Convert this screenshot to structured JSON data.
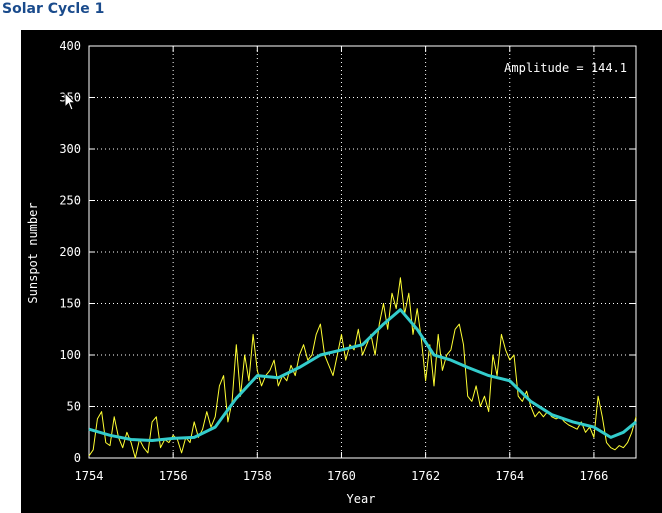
{
  "page": {
    "title": "Solar Cycle 1"
  },
  "chart_data": {
    "type": "line",
    "title": "",
    "xlabel": "Year",
    "ylabel": "Sunspot number",
    "xlim": [
      1754,
      1767
    ],
    "ylim": [
      0,
      400
    ],
    "xticks": [
      1754,
      1756,
      1758,
      1760,
      1762,
      1764,
      1766
    ],
    "yticks": [
      0,
      50,
      100,
      150,
      200,
      250,
      300,
      350,
      400
    ],
    "grid": true,
    "annotation": "Amplitude = 144.1",
    "colors": {
      "background": "#000000",
      "monthly": "#ffff33",
      "smoothed": "#33cccc",
      "grid": "#ffffff",
      "text": "#ffffff"
    },
    "series": [
      {
        "key": "monthly",
        "x": [
          1754.0,
          1754.1,
          1754.2,
          1754.3,
          1754.4,
          1754.5,
          1754.6,
          1754.7,
          1754.8,
          1754.9,
          1755.0,
          1755.1,
          1755.2,
          1755.3,
          1755.4,
          1755.5,
          1755.6,
          1755.7,
          1755.8,
          1755.9,
          1756.0,
          1756.1,
          1756.2,
          1756.3,
          1756.4,
          1756.5,
          1756.6,
          1756.7,
          1756.8,
          1756.9,
          1757.0,
          1757.1,
          1757.2,
          1757.3,
          1757.4,
          1757.5,
          1757.6,
          1757.7,
          1757.8,
          1757.9,
          1758.0,
          1758.1,
          1758.2,
          1758.3,
          1758.4,
          1758.5,
          1758.6,
          1758.7,
          1758.8,
          1758.9,
          1759.0,
          1759.1,
          1759.2,
          1759.3,
          1759.4,
          1759.5,
          1759.6,
          1759.7,
          1759.8,
          1759.9,
          1760.0,
          1760.1,
          1760.2,
          1760.3,
          1760.4,
          1760.5,
          1760.6,
          1760.7,
          1760.8,
          1760.9,
          1761.0,
          1761.1,
          1761.2,
          1761.3,
          1761.4,
          1761.5,
          1761.6,
          1761.7,
          1761.8,
          1761.9,
          1762.0,
          1762.1,
          1762.2,
          1762.3,
          1762.4,
          1762.5,
          1762.6,
          1762.7,
          1762.8,
          1762.9,
          1763.0,
          1763.1,
          1763.2,
          1763.3,
          1763.4,
          1763.5,
          1763.6,
          1763.7,
          1763.8,
          1763.9,
          1764.0,
          1764.1,
          1764.2,
          1764.3,
          1764.4,
          1764.5,
          1764.6,
          1764.7,
          1764.8,
          1764.9,
          1765.0,
          1765.1,
          1765.2,
          1765.3,
          1765.4,
          1765.5,
          1765.6,
          1765.7,
          1765.8,
          1765.9,
          1766.0,
          1766.1,
          1766.2,
          1766.3,
          1766.4,
          1766.5,
          1766.6,
          1766.7,
          1766.8,
          1766.9,
          1767.0
        ],
        "y": [
          2,
          8,
          38,
          45,
          15,
          12,
          40,
          20,
          10,
          25,
          15,
          0,
          18,
          10,
          5,
          35,
          40,
          10,
          18,
          15,
          22,
          18,
          5,
          20,
          15,
          35,
          20,
          28,
          45,
          30,
          40,
          70,
          80,
          35,
          55,
          110,
          60,
          100,
          75,
          120,
          85,
          70,
          80,
          85,
          95,
          70,
          80,
          75,
          90,
          80,
          100,
          110,
          95,
          100,
          120,
          130,
          100,
          90,
          80,
          100,
          120,
          95,
          110,
          105,
          125,
          100,
          110,
          120,
          100,
          130,
          150,
          125,
          160,
          145,
          175,
          140,
          160,
          120,
          145,
          115,
          75,
          110,
          70,
          120,
          85,
          100,
          105,
          125,
          130,
          110,
          60,
          55,
          70,
          50,
          60,
          45,
          100,
          80,
          120,
          105,
          95,
          100,
          60,
          55,
          65,
          50,
          40,
          45,
          40,
          45,
          40,
          38,
          40,
          35,
          32,
          30,
          28,
          35,
          25,
          30,
          20,
          60,
          40,
          15,
          10,
          8,
          12,
          10,
          15,
          25,
          40
        ]
      },
      {
        "key": "smoothed",
        "x": [
          1754.0,
          1754.5,
          1755.0,
          1755.5,
          1756.0,
          1756.5,
          1757.0,
          1757.5,
          1758.0,
          1758.5,
          1759.0,
          1759.5,
          1760.0,
          1760.5,
          1761.0,
          1761.4,
          1761.8,
          1762.2,
          1762.6,
          1763.0,
          1763.5,
          1764.0,
          1764.5,
          1765.0,
          1765.5,
          1766.0,
          1766.4,
          1766.7,
          1767.0
        ],
        "y": [
          28,
          22,
          18,
          17,
          19,
          20,
          30,
          58,
          80,
          78,
          88,
          100,
          105,
          110,
          130,
          144,
          125,
          100,
          95,
          88,
          80,
          75,
          55,
          42,
          35,
          30,
          20,
          25,
          35
        ]
      }
    ]
  }
}
